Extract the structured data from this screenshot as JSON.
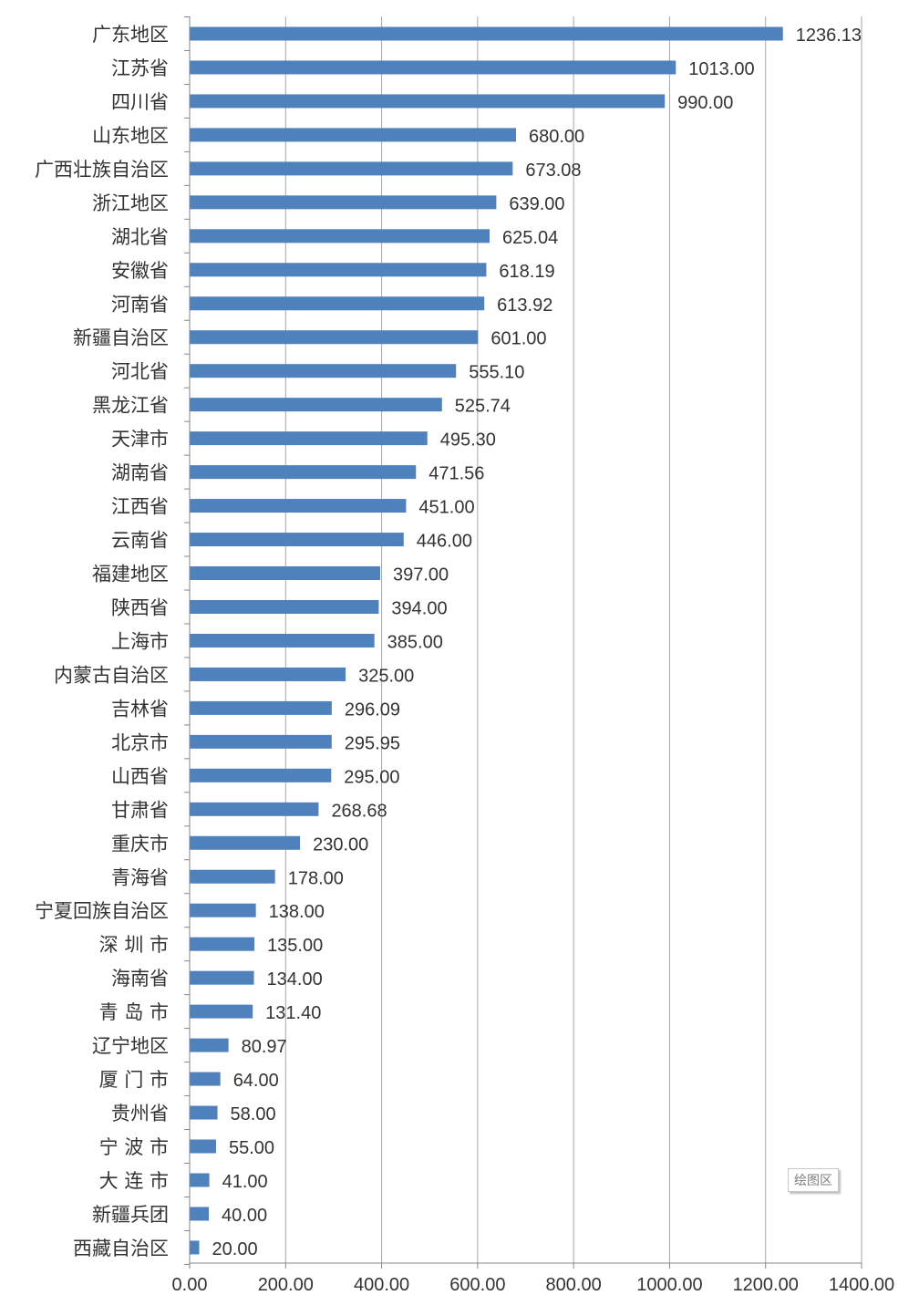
{
  "chart_data": {
    "type": "bar",
    "orientation": "horizontal",
    "categories": [
      "广东地区",
      "江苏省",
      "四川省",
      "山东地区",
      "广西壮族自治区",
      "浙江地区",
      "湖北省",
      "安徽省",
      "河南省",
      "新疆自治区",
      "河北省",
      "黑龙江省",
      "天津市",
      "湖南省",
      "江西省",
      "云南省",
      "福建地区",
      "陕西省",
      "上海市",
      "内蒙古自治区",
      "吉林省",
      "北京市",
      "山西省",
      "甘肃省",
      "重庆市",
      "青海省",
      "宁夏回族自治区",
      "深 圳 市",
      "海南省",
      "青 岛 市",
      "辽宁地区",
      "厦 门 市",
      "贵州省",
      "宁 波 市",
      "大 连 市",
      "新疆兵团",
      "西藏自治区"
    ],
    "values": [
      1236.13,
      1013.0,
      990.0,
      680.0,
      673.08,
      639.0,
      625.04,
      618.19,
      613.92,
      601.0,
      555.1,
      525.74,
      495.3,
      471.56,
      451.0,
      446.0,
      397.0,
      394.0,
      385.0,
      325.0,
      296.09,
      295.95,
      295.0,
      268.68,
      230.0,
      178.0,
      138.0,
      135.0,
      134.0,
      131.4,
      80.97,
      64.0,
      58.0,
      55.0,
      41.0,
      40.0,
      20.0
    ],
    "value_labels": [
      "1236.13",
      "1013.00",
      "990.00",
      "680.00",
      "673.08",
      "639.00",
      "625.04",
      "618.19",
      "613.92",
      "601.00",
      "555.10",
      "525.74",
      "495.30",
      "471.56",
      "451.00",
      "446.00",
      "397.00",
      "394.00",
      "385.00",
      "325.00",
      "296.09",
      "295.95",
      "295.00",
      "268.68",
      "230.00",
      "178.00",
      "138.00",
      "135.00",
      "134.00",
      "131.40",
      "80.97",
      "64.00",
      "58.00",
      "55.00",
      "41.00",
      "40.00",
      "20.00"
    ],
    "x_ticks": [
      "0.00",
      "200.00",
      "400.00",
      "600.00",
      "800.00",
      "1000.00",
      "1200.00",
      "1400.00"
    ],
    "xlim": [
      0,
      1400
    ],
    "grid": true,
    "bar_color": "#4f81bd",
    "title": "",
    "xlabel": "",
    "ylabel": ""
  },
  "tooltip": {
    "text": "绘图区"
  }
}
